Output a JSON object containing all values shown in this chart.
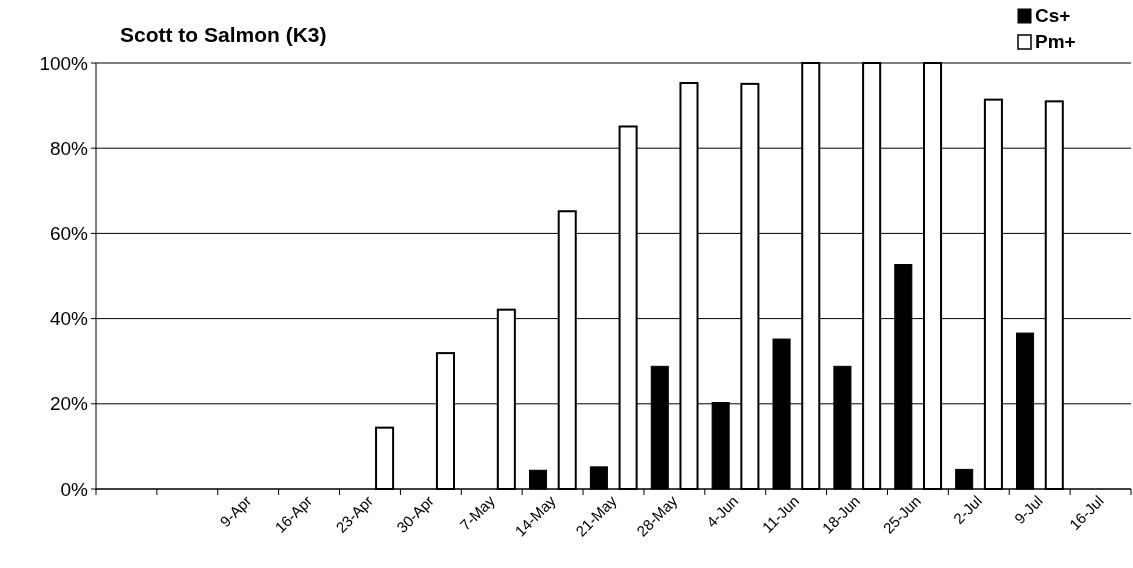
{
  "chart_data": {
    "type": "bar",
    "title": "Scott to Salmon (K3)",
    "categories": [
      null,
      null,
      "9-Apr",
      "16-Apr",
      "23-Apr",
      "30-Apr",
      "7-May",
      "14-May",
      "21-May",
      "28-May",
      "4-Jun",
      "11-Jun",
      "18-Jun",
      "25-Jun",
      "2-Jul",
      "9-Jul",
      "16-Jul"
    ],
    "series": [
      {
        "name": "Cs+",
        "color": "#000000",
        "values": [
          null,
          null,
          null,
          null,
          null,
          null,
          null,
          4.4,
          5.2,
          28.8,
          20.3,
          35.2,
          28.8,
          52.7,
          4.6,
          36.6,
          null
        ]
      },
      {
        "name": "Pm+",
        "color": "#ffffff",
        "values": [
          null,
          null,
          null,
          null,
          14.4,
          31.9,
          42.1,
          65.2,
          85.1,
          95.3,
          95.1,
          100,
          100,
          100,
          91.4,
          91.0,
          null
        ]
      }
    ],
    "ylim": [
      0,
      100
    ],
    "yticks": [
      {
        "value": 0,
        "label": "0%"
      },
      {
        "value": 20,
        "label": "20%"
      },
      {
        "value": 40,
        "label": "40%"
      },
      {
        "value": 60,
        "label": "60%"
      },
      {
        "value": 80,
        "label": "80%"
      },
      {
        "value": 100,
        "label": "100%"
      }
    ],
    "grid": "y",
    "legend": "top right"
  }
}
